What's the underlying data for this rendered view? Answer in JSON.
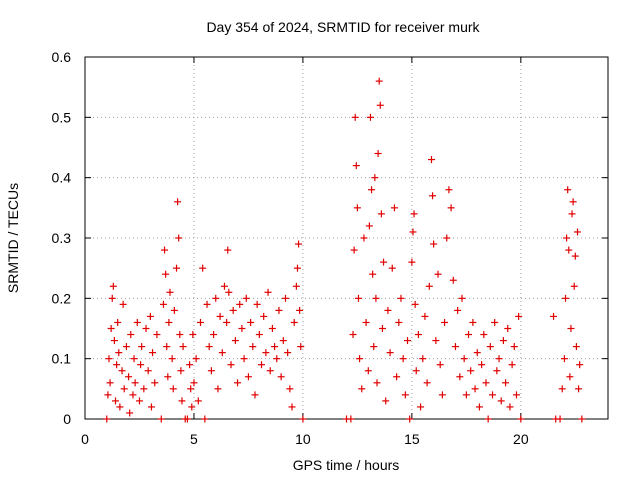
{
  "chart_data": {
    "type": "scatter",
    "title": "Day 354 of 2024, SRMTID for receiver murk",
    "xlabel": "GPS time / hours",
    "ylabel": "SRMTID / TECUs",
    "xlim": [
      0,
      24
    ],
    "ylim": [
      0,
      0.6
    ],
    "x_ticks": [
      0,
      5,
      10,
      15,
      20
    ],
    "x_tick_labels": [
      "0",
      "5",
      "10",
      "15",
      "20"
    ],
    "y_ticks": [
      0,
      0.1,
      0.2,
      0.3,
      0.4,
      0.5,
      0.6
    ],
    "y_tick_labels": [
      "0",
      "0.1",
      "0.2",
      "0.3",
      "0.4",
      "0.5",
      "0.6"
    ],
    "grid": true,
    "marker": "+",
    "series_color": "#e00000",
    "series": [
      {
        "name": "SRMTID",
        "points": [
          [
            1.0,
            0.0
          ],
          [
            1.05,
            0.04
          ],
          [
            1.1,
            0.1
          ],
          [
            1.15,
            0.06
          ],
          [
            1.2,
            0.15
          ],
          [
            1.25,
            0.2
          ],
          [
            1.3,
            0.22
          ],
          [
            1.35,
            0.13
          ],
          [
            1.4,
            0.03
          ],
          [
            1.45,
            0.09
          ],
          [
            1.5,
            0.16
          ],
          [
            1.55,
            0.11
          ],
          [
            1.6,
            0.02
          ],
          [
            1.7,
            0.08
          ],
          [
            1.75,
            0.19
          ],
          [
            1.8,
            0.05
          ],
          [
            1.9,
            0.12
          ],
          [
            2.0,
            0.07
          ],
          [
            2.05,
            0.01
          ],
          [
            2.1,
            0.14
          ],
          [
            2.2,
            0.04
          ],
          [
            2.25,
            0.1
          ],
          [
            2.3,
            0.06
          ],
          [
            2.4,
            0.16
          ],
          [
            2.5,
            0.03
          ],
          [
            2.55,
            0.09
          ],
          [
            2.6,
            0.12
          ],
          [
            2.7,
            0.05
          ],
          [
            2.8,
            0.15
          ],
          [
            2.9,
            0.08
          ],
          [
            3.0,
            0.17
          ],
          [
            3.05,
            0.02
          ],
          [
            3.1,
            0.11
          ],
          [
            3.2,
            0.06
          ],
          [
            3.3,
            0.14
          ],
          [
            3.5,
            0.0
          ],
          [
            3.6,
            0.19
          ],
          [
            3.65,
            0.28
          ],
          [
            3.7,
            0.24
          ],
          [
            3.75,
            0.12
          ],
          [
            3.8,
            0.07
          ],
          [
            3.85,
            0.16
          ],
          [
            3.9,
            0.21
          ],
          [
            4.0,
            0.1
          ],
          [
            4.05,
            0.05
          ],
          [
            4.1,
            0.18
          ],
          [
            4.2,
            0.25
          ],
          [
            4.25,
            0.36
          ],
          [
            4.3,
            0.3
          ],
          [
            4.35,
            0.14
          ],
          [
            4.4,
            0.08
          ],
          [
            4.45,
            0.03
          ],
          [
            4.5,
            0.12
          ],
          [
            4.6,
            0.0
          ],
          [
            4.7,
            0.0
          ],
          [
            4.8,
            0.09
          ],
          [
            4.85,
            0.05
          ],
          [
            4.9,
            0.02
          ],
          [
            4.95,
            0.14
          ],
          [
            5.0,
            0.06
          ],
          [
            5.1,
            0.1
          ],
          [
            5.2,
            0.03
          ],
          [
            5.3,
            0.16
          ],
          [
            5.4,
            0.25
          ],
          [
            5.5,
            0.0
          ],
          [
            5.6,
            0.19
          ],
          [
            5.7,
            0.12
          ],
          [
            5.8,
            0.08
          ],
          [
            5.9,
            0.14
          ],
          [
            6.0,
            0.2
          ],
          [
            6.1,
            0.05
          ],
          [
            6.2,
            0.17
          ],
          [
            6.3,
            0.11
          ],
          [
            6.4,
            0.22
          ],
          [
            6.5,
            0.16
          ],
          [
            6.55,
            0.28
          ],
          [
            6.6,
            0.21
          ],
          [
            6.7,
            0.09
          ],
          [
            6.8,
            0.18
          ],
          [
            6.9,
            0.13
          ],
          [
            7.0,
            0.06
          ],
          [
            7.1,
            0.19
          ],
          [
            7.2,
            0.15
          ],
          [
            7.3,
            0.1
          ],
          [
            7.4,
            0.2
          ],
          [
            7.5,
            0.07
          ],
          [
            7.6,
            0.16
          ],
          [
            7.7,
            0.12
          ],
          [
            7.8,
            0.04
          ],
          [
            7.9,
            0.19
          ],
          [
            8.0,
            0.14
          ],
          [
            8.1,
            0.09
          ],
          [
            8.2,
            0.17
          ],
          [
            8.3,
            0.11
          ],
          [
            8.4,
            0.21
          ],
          [
            8.5,
            0.08
          ],
          [
            8.6,
            0.15
          ],
          [
            8.7,
            0.12
          ],
          [
            8.8,
            0.1
          ],
          [
            8.9,
            0.18
          ],
          [
            9.0,
            0.07
          ],
          [
            9.1,
            0.13
          ],
          [
            9.2,
            0.2
          ],
          [
            9.3,
            0.11
          ],
          [
            9.4,
            0.05
          ],
          [
            9.5,
            0.02
          ],
          [
            9.6,
            0.16
          ],
          [
            9.7,
            0.22
          ],
          [
            9.75,
            0.25
          ],
          [
            9.8,
            0.29
          ],
          [
            9.85,
            0.18
          ],
          [
            9.9,
            0.12
          ],
          [
            10.0,
            0.0
          ],
          [
            12.0,
            0.0
          ],
          [
            12.2,
            0.0
          ],
          [
            12.3,
            0.14
          ],
          [
            12.35,
            0.28
          ],
          [
            12.4,
            0.5
          ],
          [
            12.45,
            0.42
          ],
          [
            12.5,
            0.35
          ],
          [
            12.55,
            0.2
          ],
          [
            12.6,
            0.1
          ],
          [
            12.7,
            0.05
          ],
          [
            12.8,
            0.3
          ],
          [
            12.9,
            0.16
          ],
          [
            13.0,
            0.08
          ],
          [
            13.05,
            0.32
          ],
          [
            13.1,
            0.5
          ],
          [
            13.15,
            0.38
          ],
          [
            13.2,
            0.24
          ],
          [
            13.25,
            0.12
          ],
          [
            13.3,
            0.4
          ],
          [
            13.35,
            0.2
          ],
          [
            13.4,
            0.06
          ],
          [
            13.45,
            0.44
          ],
          [
            13.5,
            0.56
          ],
          [
            13.55,
            0.52
          ],
          [
            13.6,
            0.34
          ],
          [
            13.65,
            0.15
          ],
          [
            13.7,
            0.26
          ],
          [
            13.8,
            0.03
          ],
          [
            13.9,
            0.18
          ],
          [
            14.0,
            0.11
          ],
          [
            14.1,
            0.25
          ],
          [
            14.2,
            0.35
          ],
          [
            14.3,
            0.07
          ],
          [
            14.4,
            0.16
          ],
          [
            14.5,
            0.2
          ],
          [
            14.6,
            0.1
          ],
          [
            14.7,
            0.04
          ],
          [
            14.8,
            0.13
          ],
          [
            14.9,
            0.0
          ],
          [
            15.0,
            0.26
          ],
          [
            15.05,
            0.31
          ],
          [
            15.1,
            0.34
          ],
          [
            15.15,
            0.19
          ],
          [
            15.2,
            0.08
          ],
          [
            15.3,
            0.14
          ],
          [
            15.4,
            0.02
          ],
          [
            15.5,
            0.1
          ],
          [
            15.6,
            0.17
          ],
          [
            15.7,
            0.06
          ],
          [
            15.8,
            0.22
          ],
          [
            15.9,
            0.43
          ],
          [
            15.95,
            0.37
          ],
          [
            16.0,
            0.29
          ],
          [
            16.1,
            0.13
          ],
          [
            16.2,
            0.24
          ],
          [
            16.3,
            0.09
          ],
          [
            16.4,
            0.04
          ],
          [
            16.5,
            0.16
          ],
          [
            16.6,
            0.3
          ],
          [
            16.7,
            0.38
          ],
          [
            16.8,
            0.35
          ],
          [
            16.9,
            0.23
          ],
          [
            17.0,
            0.12
          ],
          [
            17.1,
            0.18
          ],
          [
            17.2,
            0.07
          ],
          [
            17.3,
            0.2
          ],
          [
            17.4,
            0.1
          ],
          [
            17.5,
            0.04
          ],
          [
            17.6,
            0.14
          ],
          [
            17.7,
            0.08
          ],
          [
            17.8,
            0.16
          ],
          [
            17.9,
            0.05
          ],
          [
            18.0,
            0.11
          ],
          [
            18.1,
            0.02
          ],
          [
            18.2,
            0.09
          ],
          [
            18.3,
            0.14
          ],
          [
            18.4,
            0.06
          ],
          [
            18.5,
            0.0
          ],
          [
            18.6,
            0.12
          ],
          [
            18.7,
            0.04
          ],
          [
            18.8,
            0.16
          ],
          [
            18.9,
            0.08
          ],
          [
            19.0,
            0.1
          ],
          [
            19.1,
            0.03
          ],
          [
            19.2,
            0.13
          ],
          [
            19.3,
            0.06
          ],
          [
            19.4,
            0.15
          ],
          [
            19.5,
            0.02
          ],
          [
            19.6,
            0.09
          ],
          [
            19.7,
            0.12
          ],
          [
            19.8,
            0.04
          ],
          [
            19.9,
            0.17
          ],
          [
            20.0,
            0.0
          ],
          [
            21.5,
            0.17
          ],
          [
            21.6,
            0.0
          ],
          [
            21.8,
            0.0
          ],
          [
            21.9,
            0.05
          ],
          [
            22.0,
            0.1
          ],
          [
            22.05,
            0.2
          ],
          [
            22.1,
            0.3
          ],
          [
            22.15,
            0.38
          ],
          [
            22.2,
            0.28
          ],
          [
            22.25,
            0.07
          ],
          [
            22.3,
            0.15
          ],
          [
            22.35,
            0.34
          ],
          [
            22.4,
            0.36
          ],
          [
            22.45,
            0.22
          ],
          [
            22.5,
            0.27
          ],
          [
            22.55,
            0.12
          ],
          [
            22.6,
            0.31
          ],
          [
            22.65,
            0.05
          ],
          [
            22.7,
            0.09
          ],
          [
            22.8,
            0.0
          ]
        ]
      }
    ]
  }
}
